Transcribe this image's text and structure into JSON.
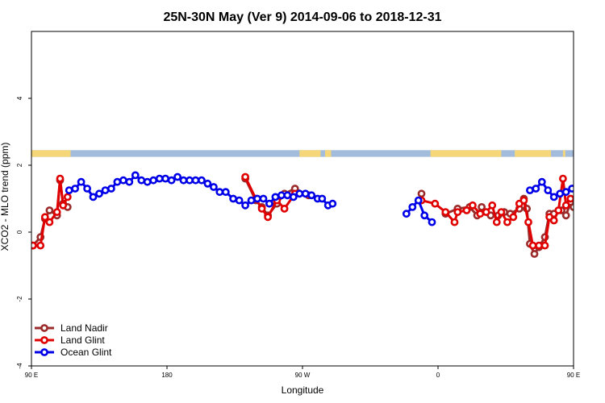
{
  "chart_data": {
    "type": "line",
    "title": "25N-30N May (Ver 9)   2014-09-06 to 2018-12-31",
    "xlabel": "Longitude",
    "ylabel": "XCO2 - MLO trend (ppm)",
    "xlim": [
      90,
      450
    ],
    "ylim": [
      -4,
      6
    ],
    "x_ticks": [
      {
        "value": 90,
        "label": "90 E"
      },
      {
        "value": 180,
        "label": "180"
      },
      {
        "value": 270,
        "label": "90 W"
      },
      {
        "value": 360,
        "label": "0"
      },
      {
        "value": 450,
        "label": "90 E"
      },
      {
        "value": 540,
        "label": "180"
      }
    ],
    "y_ticks": [
      {
        "value": -4,
        "label": "-4"
      },
      {
        "value": -2,
        "label": "-2"
      },
      {
        "value": 0,
        "label": "0"
      },
      {
        "value": 2,
        "label": "2"
      },
      {
        "value": 4,
        "label": "4"
      }
    ],
    "grid": false,
    "legend_position": "bottom-left",
    "colors": {
      "land": "#f5d77a",
      "ocean": "#a3bcdc"
    },
    "land_mask": {
      "y_range": [
        2.25,
        2.45
      ],
      "land_segments": [
        [
          90,
          116
        ],
        [
          268,
          282
        ],
        [
          285,
          289
        ],
        [
          355,
          402
        ],
        [
          411,
          435
        ],
        [
          443,
          444.5
        ]
      ]
    },
    "series": [
      {
        "name": "Land Nadir",
        "color": "#9b2a2a",
        "points": [
          [
            91,
            -0.4
          ],
          [
            96,
            -0.15
          ],
          [
            99,
            0.4
          ],
          [
            102,
            0.65
          ],
          [
            107,
            0.5
          ],
          [
            109,
            1.55
          ],
          [
            111,
            0.85
          ],
          [
            114,
            0.75
          ],
          [
            232,
            1.6
          ],
          [
            239,
            0.95
          ],
          [
            243,
            0.75
          ],
          [
            247,
            0.5
          ],
          [
            253,
            0.85
          ],
          [
            258,
            1.15
          ],
          [
            265,
            1.3
          ],
          [
            274,
            1.1
          ],
          [
            349,
            1.15
          ],
          [
            365,
            0.55
          ],
          [
            373,
            0.7
          ],
          [
            381,
            0.75
          ],
          [
            386,
            0.5
          ],
          [
            389,
            0.75
          ],
          [
            395,
            0.5
          ],
          [
            400,
            0.5
          ],
          [
            404,
            0.6
          ],
          [
            408,
            0.55
          ],
          [
            414,
            0.7
          ],
          [
            417,
            1.0
          ],
          [
            419,
            0.7
          ],
          [
            421,
            -0.35
          ],
          [
            424,
            -0.65
          ],
          [
            427,
            -0.45
          ],
          [
            431,
            -0.15
          ],
          [
            434,
            0.55
          ],
          [
            437,
            0.55
          ],
          [
            442,
            0.65
          ],
          [
            445,
            0.5
          ],
          [
            448,
            0.9
          ],
          [
            450,
            0.75
          ]
        ]
      },
      {
        "name": "Land Glint",
        "color": "#e00000",
        "points": [
          [
            91,
            -0.4
          ],
          [
            96,
            -0.4
          ],
          [
            99,
            0.45
          ],
          [
            102,
            0.3
          ],
          [
            107,
            0.6
          ],
          [
            109,
            1.6
          ],
          [
            111,
            0.8
          ],
          [
            114,
            1.05
          ],
          [
            232,
            1.65
          ],
          [
            239,
            1.0
          ],
          [
            243,
            0.7
          ],
          [
            247,
            0.45
          ],
          [
            253,
            0.95
          ],
          [
            258,
            0.7
          ],
          [
            265,
            1.15
          ],
          [
            349,
            0.95
          ],
          [
            358,
            0.85
          ],
          [
            365,
            0.6
          ],
          [
            371,
            0.3
          ],
          [
            373,
            0.6
          ],
          [
            379,
            0.65
          ],
          [
            383,
            0.8
          ],
          [
            388,
            0.55
          ],
          [
            392,
            0.6
          ],
          [
            396,
            0.8
          ],
          [
            399,
            0.3
          ],
          [
            402,
            0.6
          ],
          [
            406,
            0.3
          ],
          [
            410,
            0.45
          ],
          [
            414,
            0.85
          ],
          [
            417,
            0.95
          ],
          [
            420,
            0.3
          ],
          [
            423,
            -0.4
          ],
          [
            427,
            -0.4
          ],
          [
            431,
            -0.4
          ],
          [
            434,
            0.45
          ],
          [
            437,
            0.35
          ],
          [
            440,
            0.65
          ],
          [
            443,
            1.6
          ],
          [
            445,
            0.8
          ],
          [
            448,
            1.0
          ]
        ]
      },
      {
        "name": "Ocean Glint",
        "color": "#0000e8",
        "points": [
          [
            115,
            1.25
          ],
          [
            119,
            1.3
          ],
          [
            123,
            1.5
          ],
          [
            127,
            1.3
          ],
          [
            131,
            1.05
          ],
          [
            135,
            1.15
          ],
          [
            139,
            1.25
          ],
          [
            143,
            1.3
          ],
          [
            147,
            1.5
          ],
          [
            151,
            1.55
          ],
          [
            155,
            1.5
          ],
          [
            159,
            1.7
          ],
          [
            163,
            1.55
          ],
          [
            167,
            1.5
          ],
          [
            171,
            1.55
          ],
          [
            175,
            1.6
          ],
          [
            179,
            1.6
          ],
          [
            183,
            1.55
          ],
          [
            187,
            1.65
          ],
          [
            191,
            1.55
          ],
          [
            195,
            1.55
          ],
          [
            199,
            1.55
          ],
          [
            203,
            1.55
          ],
          [
            207,
            1.45
          ],
          [
            211,
            1.35
          ],
          [
            215,
            1.2
          ],
          [
            219,
            1.2
          ],
          [
            224,
            1.0
          ],
          [
            228,
            0.95
          ],
          [
            232,
            0.8
          ],
          [
            236,
            0.95
          ],
          [
            240,
            1.0
          ],
          [
            244,
            1.0
          ],
          [
            248,
            0.85
          ],
          [
            252,
            1.05
          ],
          [
            256,
            1.1
          ],
          [
            260,
            1.1
          ],
          [
            264,
            1.05
          ],
          [
            268,
            1.15
          ],
          [
            272,
            1.15
          ],
          [
            276,
            1.1
          ],
          [
            280,
            1.0
          ],
          [
            283,
            1.0
          ],
          [
            287,
            0.8
          ],
          [
            290,
            0.85
          ],
          [
            339,
            0.55
          ],
          [
            343,
            0.75
          ],
          [
            347,
            0.95
          ],
          [
            351,
            0.5
          ],
          [
            356,
            0.3
          ],
          [
            421,
            1.25
          ],
          [
            425,
            1.3
          ],
          [
            429,
            1.5
          ],
          [
            433,
            1.25
          ],
          [
            437,
            1.05
          ],
          [
            441,
            1.15
          ],
          [
            445,
            1.2
          ],
          [
            449,
            1.3
          ],
          [
            453,
            1.5
          ],
          [
            457,
            1.55
          ],
          [
            461,
            1.5
          ],
          [
            465,
            1.7
          ]
        ]
      }
    ]
  }
}
